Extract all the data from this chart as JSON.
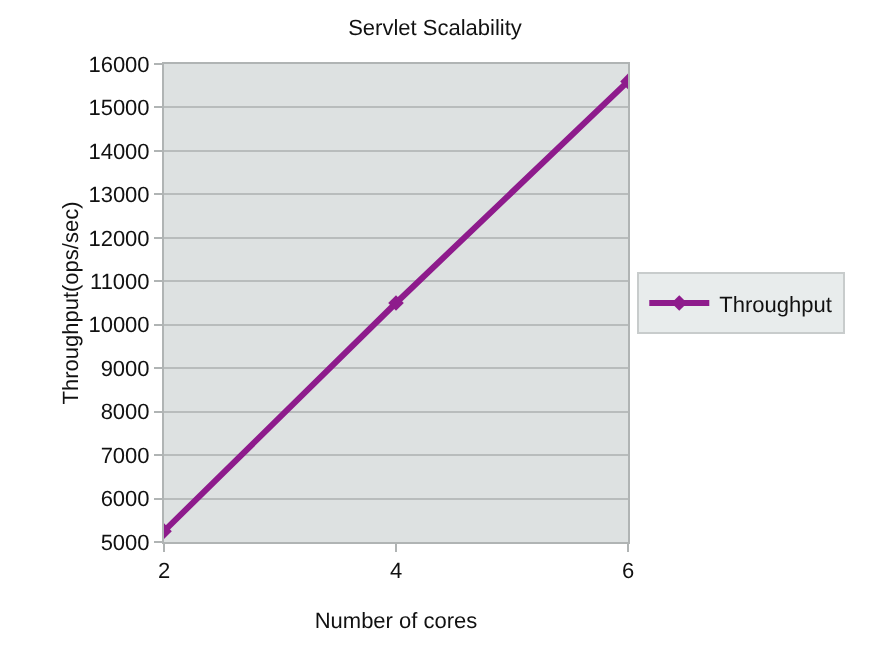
{
  "chart_data": {
    "type": "line",
    "title": "Servlet Scalability",
    "xlabel": "Number of cores",
    "ylabel": "Throughput(ops/sec)",
    "x": [
      2,
      4,
      6
    ],
    "series": [
      {
        "name": "Throughput",
        "color": "#8e1b8c",
        "values": [
          5250,
          10500,
          15600
        ]
      }
    ],
    "xlim": [
      2,
      6
    ],
    "xticks": [
      2,
      4,
      6
    ],
    "ylim": [
      5000,
      16000
    ],
    "yticks": [
      5000,
      6000,
      7000,
      8000,
      9000,
      10000,
      11000,
      12000,
      13000,
      14000,
      15000,
      16000
    ],
    "grid": "y",
    "legend": "right",
    "marker": "diamond",
    "line_style": "solid"
  }
}
